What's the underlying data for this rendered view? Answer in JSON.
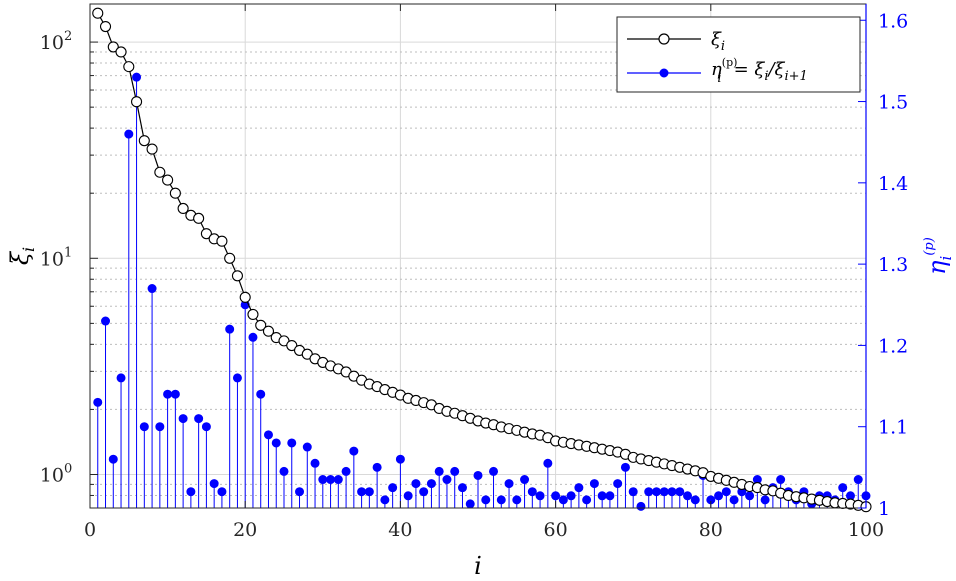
{
  "chart_data": {
    "type": "line",
    "xlabel": "i",
    "ylabel_left": "ξ",
    "ylabel_left_sub": "i",
    "ylabel_right": "η",
    "ylabel_right_sub": "i",
    "ylabel_right_sup": "(p)",
    "xlim": [
      0,
      100
    ],
    "ylim_left": [
      0.7,
      150
    ],
    "yscale_left": "log",
    "ylim_right": [
      1.0,
      1.62
    ],
    "x_ticks": [
      0,
      20,
      40,
      60,
      80,
      100
    ],
    "x_tick_labels": [
      "0",
      "20",
      "40",
      "60",
      "80",
      "100"
    ],
    "y_left_ticks": [
      1,
      10,
      100
    ],
    "y_left_tick_bases": [
      "10",
      "10",
      "10"
    ],
    "y_left_tick_exps": [
      "0",
      "1",
      "2"
    ],
    "y_right_ticks": [
      1,
      1.1,
      1.2,
      1.3,
      1.4,
      1.5,
      1.6
    ],
    "y_right_tick_labels": [
      "1",
      "1.1",
      "1.2",
      "1.3",
      "1.4",
      "1.5",
      "1.6"
    ],
    "grid": true,
    "legend_position": "top-right",
    "colors": {
      "xi": "#000000",
      "eta": "#0000ff",
      "grid": "#d9d9d9"
    },
    "series": [
      {
        "key": "xi",
        "legend_main": "ξ",
        "legend_sub": "i",
        "axis": "left",
        "style": "line-open-circles",
        "x": [
          1,
          2,
          3,
          4,
          5,
          6,
          7,
          8,
          9,
          10,
          11,
          12,
          13,
          14,
          15,
          16,
          17,
          18,
          19,
          20,
          21,
          22,
          23,
          24,
          25,
          26,
          27,
          28,
          29,
          30,
          31,
          32,
          33,
          34,
          35,
          36,
          37,
          38,
          39,
          40,
          41,
          42,
          43,
          44,
          45,
          46,
          47,
          48,
          49,
          50,
          51,
          52,
          53,
          54,
          55,
          56,
          57,
          58,
          59,
          60,
          61,
          62,
          63,
          64,
          65,
          66,
          67,
          68,
          69,
          70,
          71,
          72,
          73,
          74,
          75,
          76,
          77,
          78,
          79,
          80,
          81,
          82,
          83,
          84,
          85,
          86,
          87,
          88,
          89,
          90,
          91,
          92,
          93,
          94,
          95,
          96,
          97,
          98,
          99,
          100
        ],
        "values": [
          136,
          118,
          95,
          90,
          77,
          53,
          35,
          32,
          25,
          23,
          20,
          17,
          15.8,
          15.3,
          13,
          12.3,
          12,
          10,
          8.3,
          6.6,
          5.5,
          4.9,
          4.6,
          4.3,
          4.15,
          3.95,
          3.75,
          3.6,
          3.43,
          3.3,
          3.18,
          3.08,
          2.98,
          2.85,
          2.73,
          2.62,
          2.55,
          2.47,
          2.4,
          2.33,
          2.25,
          2.2,
          2.15,
          2.1,
          2.02,
          1.96,
          1.92,
          1.87,
          1.82,
          1.77,
          1.73,
          1.7,
          1.66,
          1.63,
          1.6,
          1.57,
          1.54,
          1.52,
          1.48,
          1.43,
          1.41,
          1.39,
          1.37,
          1.35,
          1.33,
          1.31,
          1.29,
          1.27,
          1.24,
          1.2,
          1.18,
          1.16,
          1.14,
          1.12,
          1.1,
          1.08,
          1.06,
          1.04,
          1.02,
          0.98,
          0.96,
          0.94,
          0.92,
          0.9,
          0.88,
          0.87,
          0.85,
          0.84,
          0.82,
          0.8,
          0.79,
          0.78,
          0.77,
          0.76,
          0.75,
          0.74,
          0.735,
          0.73,
          0.72,
          0.71
        ]
      },
      {
        "key": "eta",
        "legend_main": "η",
        "legend_sub": "i",
        "legend_sup": "(p)",
        "legend_rhs_1": "= ξ",
        "legend_rhs_1_sub": "i",
        "legend_rhs_2": "/ξ",
        "legend_rhs_2_sub": "i+1",
        "axis": "right",
        "style": "stem-filled-dots",
        "x": [
          1,
          2,
          3,
          4,
          5,
          6,
          7,
          8,
          9,
          10,
          11,
          12,
          13,
          14,
          15,
          16,
          17,
          18,
          19,
          20,
          21,
          22,
          23,
          24,
          25,
          26,
          27,
          28,
          29,
          30,
          31,
          32,
          33,
          34,
          35,
          36,
          37,
          38,
          39,
          40,
          41,
          42,
          43,
          44,
          45,
          46,
          47,
          48,
          49,
          50,
          51,
          52,
          53,
          54,
          55,
          56,
          57,
          58,
          59,
          60,
          61,
          62,
          63,
          64,
          65,
          66,
          67,
          68,
          69,
          70,
          71,
          72,
          73,
          74,
          75,
          76,
          77,
          78,
          79,
          80,
          81,
          82,
          83,
          84,
          85,
          86,
          87,
          88,
          89,
          90,
          91,
          92,
          93,
          94,
          95,
          96,
          97,
          98,
          99,
          100
        ],
        "values": [
          1.13,
          1.23,
          1.06,
          1.16,
          1.46,
          1.53,
          1.1,
          1.27,
          1.1,
          1.14,
          1.14,
          1.11,
          1.02,
          1.11,
          1.1,
          1.03,
          1.02,
          1.22,
          1.16,
          1.25,
          1.21,
          1.14,
          1.09,
          1.08,
          1.045,
          1.08,
          1.02,
          1.075,
          1.055,
          1.035,
          1.035,
          1.035,
          1.045,
          1.07,
          1.02,
          1.02,
          1.05,
          1.01,
          1.025,
          1.06,
          1.015,
          1.03,
          1.02,
          1.03,
          1.045,
          1.035,
          1.045,
          1.025,
          1.005,
          1.04,
          1.01,
          1.045,
          1.01,
          1.03,
          1.01,
          1.035,
          1.02,
          1.015,
          1.055,
          1.015,
          1.01,
          1.015,
          1.025,
          1.01,
          1.03,
          1.015,
          1.015,
          1.03,
          1.05,
          1.02,
          1.002,
          1.02,
          1.02,
          1.02,
          1.02,
          1.02,
          1.015,
          1.01,
          1.04,
          1.01,
          1.015,
          1.02,
          1.01,
          1.02,
          1.015,
          1.035,
          1.01,
          1.025,
          1.035,
          1.02,
          1.01,
          1.02,
          1.005,
          1.015,
          1.015,
          1.01,
          1.025,
          1.015,
          1.035,
          1.015
        ]
      }
    ]
  }
}
